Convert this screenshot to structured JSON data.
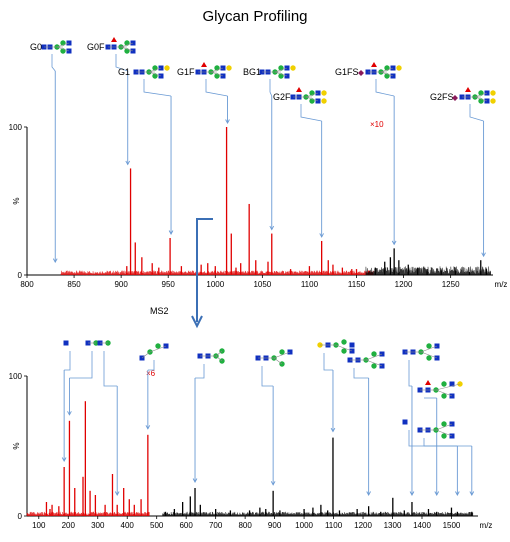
{
  "title": "Glycan Profiling",
  "ms2_label": "MS2",
  "chart_data": [
    {
      "type": "line",
      "name": "ms1",
      "xlabel": "m/z",
      "ylabel": "%",
      "xlim": [
        800,
        1295
      ],
      "ylim": [
        0,
        100
      ],
      "xticks": [
        800,
        850,
        900,
        950,
        1000,
        1050,
        1100,
        1150,
        1200,
        1250
      ],
      "yticks": [
        0,
        100
      ],
      "zoom_annotation": "×10",
      "glycan_labels": [
        "G0",
        "G0F",
        "G1",
        "G1F",
        "BG1",
        "G2F",
        "G1FS",
        "G2FS"
      ],
      "label_target_mz": [
        830,
        907,
        953,
        1013,
        1060,
        1113,
        1190,
        1285
      ],
      "series": [
        {
          "color": "#e00000",
          "x": [
            906,
            910,
            915,
            922,
            933,
            940,
            952,
            964,
            985,
            992,
            1000,
            1012,
            1017,
            1022,
            1027,
            1036,
            1043,
            1056,
            1060,
            1080,
            1100,
            1113,
            1120,
            1125,
            1135,
            1145,
            1150,
            1163
          ],
          "y": [
            6,
            72,
            22,
            12,
            8,
            5,
            25,
            6,
            7,
            8,
            6,
            100,
            28,
            5,
            8,
            48,
            10,
            9,
            28,
            4,
            6,
            23,
            10,
            7,
            5,
            4,
            4,
            3
          ]
        },
        {
          "color": "#000000",
          "x": [
            1170,
            1180,
            1186,
            1190,
            1195,
            1205,
            1215,
            1225,
            1240,
            1255,
            1270,
            1282,
            1288
          ],
          "y": [
            5,
            9,
            12,
            18,
            10,
            7,
            5,
            4,
            3,
            3,
            2,
            10,
            4
          ]
        }
      ]
    },
    {
      "type": "line",
      "name": "ms2",
      "xlabel": "m/z",
      "ylabel": "%",
      "xlim": [
        60,
        1590
      ],
      "ylim": [
        0,
        100
      ],
      "xticks": [
        100,
        200,
        300,
        400,
        500,
        600,
        700,
        800,
        900,
        1000,
        1100,
        1200,
        1300,
        1400,
        1500
      ],
      "yticks": [
        0,
        100
      ],
      "zoom_annotation": "×6",
      "series": [
        {
          "color": "#e00000",
          "x": [
            126,
            138,
            145,
            168,
            186,
            204,
            222,
            250,
            258,
            274,
            292,
            325,
            350,
            366,
            388,
            407,
            424,
            447,
            470
          ],
          "y": [
            10,
            5,
            8,
            7,
            35,
            68,
            20,
            28,
            82,
            18,
            15,
            8,
            30,
            8,
            20,
            12,
            8,
            12,
            58
          ]
        },
        {
          "color": "#000000",
          "x": [
            530,
            560,
            588,
            614,
            630,
            648,
            700,
            750,
            815,
            850,
            870,
            895,
            918,
            1000,
            1030,
            1057,
            1080,
            1098,
            1120,
            1180,
            1219,
            1260,
            1301,
            1340,
            1366,
            1422,
            1450,
            1500,
            1520,
            1569
          ],
          "y": [
            3,
            5,
            10,
            14,
            20,
            8,
            5,
            4,
            4,
            6,
            5,
            18,
            4,
            5,
            6,
            8,
            4,
            56,
            4,
            5,
            7,
            3,
            13,
            4,
            10,
            5,
            3,
            6,
            3,
            3
          ]
        }
      ]
    }
  ]
}
